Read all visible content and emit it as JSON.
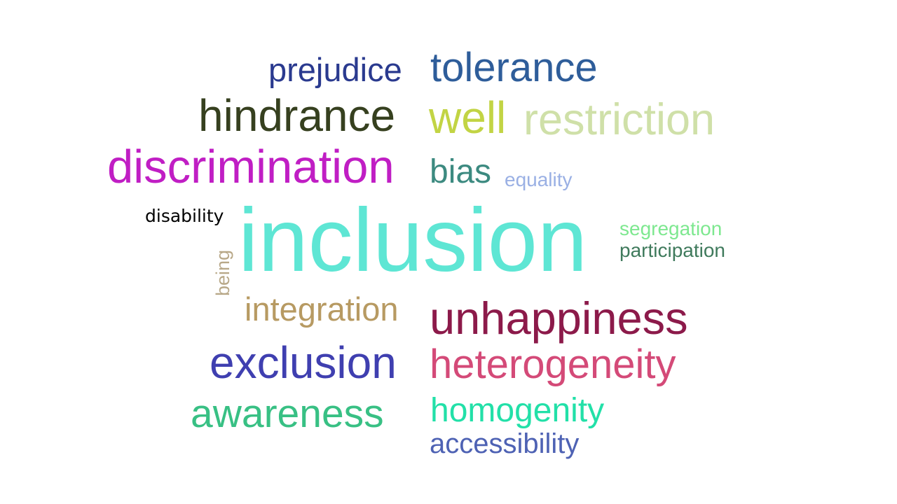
{
  "words": {
    "prejudice": {
      "text": "prejudice",
      "color": "#2a3a8f"
    },
    "tolerance": {
      "text": "tolerance",
      "color": "#2e5d9a"
    },
    "hindrance": {
      "text": "hindrance",
      "color": "#36401f"
    },
    "well": {
      "text": "well",
      "color": "#c2d444"
    },
    "restriction": {
      "text": "restriction",
      "color": "#cfe0a8"
    },
    "discrimination": {
      "text": "discrimination",
      "color": "#c01ec4"
    },
    "bias": {
      "text": "bias",
      "color": "#3c8a80"
    },
    "equality": {
      "text": "equality",
      "color": "#9ab0e4"
    },
    "disability": {
      "text": "disability",
      "color": "#000000"
    },
    "inclusion": {
      "text": "inclusion",
      "color": "#5ee6d4"
    },
    "segregation": {
      "text": "segregation",
      "color": "#7ee890"
    },
    "participation": {
      "text": "participation",
      "color": "#3f7a5c"
    },
    "being": {
      "text": "being",
      "color": "#b8a888"
    },
    "integration": {
      "text": "integration",
      "color": "#b79a62"
    },
    "unhappiness": {
      "text": "unhappiness",
      "color": "#8c1a4a"
    },
    "exclusion": {
      "text": "exclusion",
      "color": "#3f3fb0"
    },
    "heterogeneity": {
      "text": "heterogeneity",
      "color": "#d44a78"
    },
    "awareness": {
      "text": "awareness",
      "color": "#38c084"
    },
    "homogenity": {
      "text": "homogenity",
      "color": "#22e0a8"
    },
    "accessibility": {
      "text": "accessibility",
      "color": "#4e62b4"
    }
  }
}
